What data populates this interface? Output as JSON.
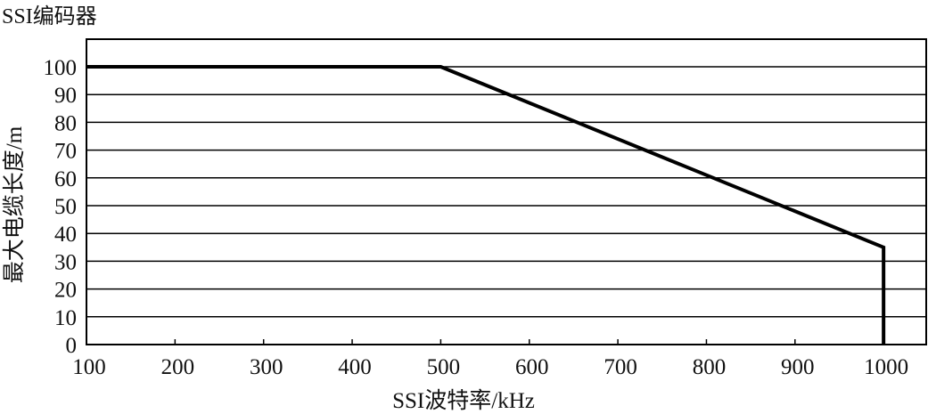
{
  "chart_data": {
    "type": "line",
    "title": "SSI编码器",
    "xlabel": "SSI波特率/kHz",
    "ylabel": "最大电缆长度/m",
    "xlim": [
      100,
      1050
    ],
    "ylim": [
      0,
      107
    ],
    "x_ticks": [
      100,
      200,
      300,
      400,
      500,
      600,
      700,
      800,
      900,
      1000
    ],
    "y_ticks": [
      0,
      10,
      20,
      30,
      40,
      50,
      60,
      70,
      80,
      90,
      100
    ],
    "grid": "horizontal",
    "series": [
      {
        "x": [
          100,
          500,
          1000,
          1000
        ],
        "y": [
          100,
          100,
          35,
          0
        ],
        "color": "#000000"
      }
    ]
  }
}
